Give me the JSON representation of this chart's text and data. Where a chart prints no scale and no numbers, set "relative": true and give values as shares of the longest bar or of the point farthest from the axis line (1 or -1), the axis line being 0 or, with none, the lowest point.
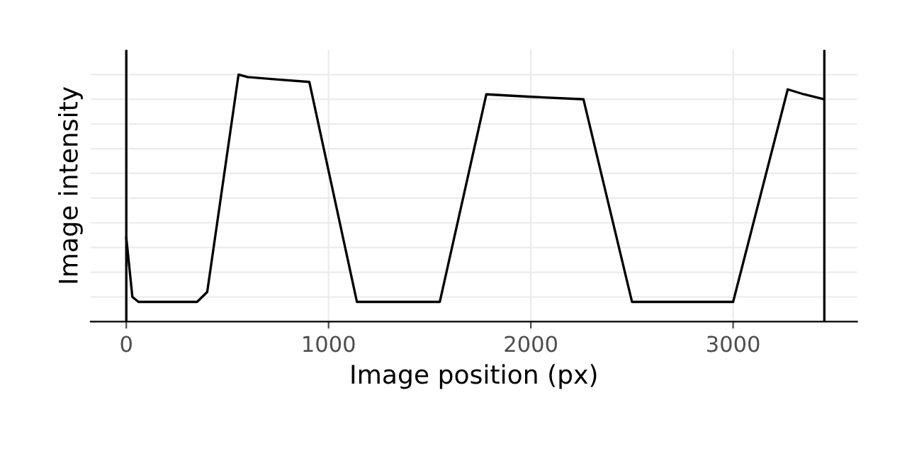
{
  "chart_data": {
    "type": "line",
    "relative": true,
    "xlabel": "Image position (px)",
    "ylabel": "Image intensity",
    "xlim": [
      -176,
      3613
    ],
    "xticks": [
      0,
      1000,
      2000,
      3000
    ],
    "grid": true,
    "legend": false,
    "series": [
      {
        "color": "#000000",
        "line_style": "solid",
        "marker": "none",
        "x": [
          0,
          30,
          60,
          200,
          350,
          400,
          555,
          600,
          750,
          905,
          1140,
          1300,
          1550,
          1780,
          2000,
          2260,
          2500,
          2750,
          3000,
          3270,
          3350,
          3450
        ],
        "values": [
          0.34,
          0.1,
          0.08,
          0.08,
          0.08,
          0.12,
          1.0,
          0.99,
          0.98,
          0.97,
          0.08,
          0.08,
          0.08,
          0.92,
          0.91,
          0.9,
          0.08,
          0.08,
          0.08,
          0.94,
          0.92,
          0.9
        ]
      }
    ],
    "ref_lines": [
      {
        "axis": "x",
        "value": 0,
        "color": "#000000"
      },
      {
        "axis": "x",
        "value": 3451,
        "color": "#000000"
      }
    ]
  }
}
